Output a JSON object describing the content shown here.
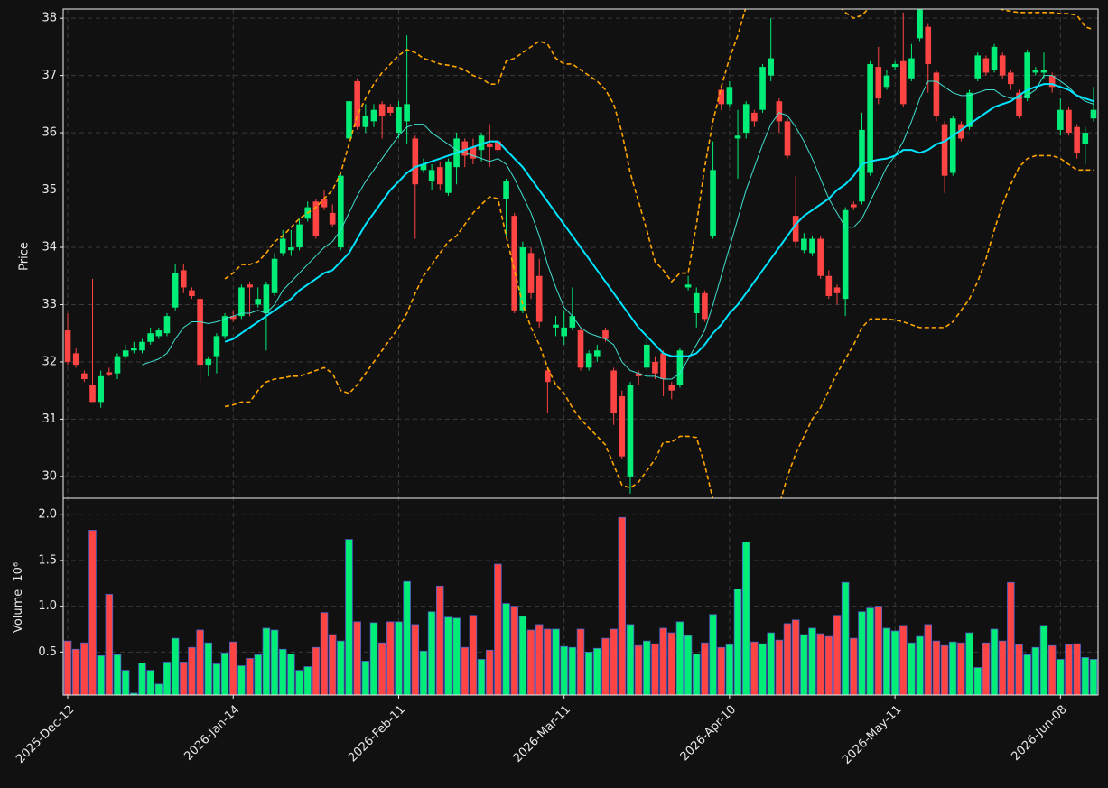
{
  "chart_data": {
    "type": "candlestick",
    "ylabel": "Price",
    "volume_ylabel": "Volume",
    "volume_offset": "10⁶",
    "categories": [
      "2025-Dec-12",
      null,
      null,
      null,
      null,
      null,
      null,
      null,
      null,
      null,
      null,
      null,
      null,
      null,
      null,
      null,
      null,
      null,
      null,
      null,
      "2026-Jan-14",
      null,
      null,
      null,
      null,
      null,
      null,
      null,
      null,
      null,
      null,
      null,
      null,
      null,
      null,
      null,
      null,
      null,
      null,
      null,
      "2026-Feb-11",
      null,
      null,
      null,
      null,
      null,
      null,
      null,
      null,
      null,
      null,
      null,
      null,
      null,
      null,
      null,
      null,
      null,
      null,
      null,
      "2026-Mar-11",
      null,
      null,
      null,
      null,
      null,
      null,
      null,
      null,
      null,
      null,
      null,
      null,
      null,
      null,
      null,
      null,
      null,
      null,
      null,
      "2026-Apr-10",
      null,
      null,
      null,
      null,
      null,
      null,
      null,
      null,
      null,
      null,
      null,
      null,
      null,
      null,
      null,
      null,
      null,
      null,
      null,
      "2026-May-11",
      null,
      null,
      null,
      null,
      null,
      null,
      null,
      null,
      null,
      null,
      null,
      null,
      null,
      null,
      null,
      null,
      null,
      null,
      null,
      "2026-Jun-08",
      null,
      null,
      null,
      null
    ],
    "open": [
      32.55,
      32.15,
      31.8,
      31.6,
      31.3,
      31.82,
      31.8,
      32.1,
      32.2,
      32.2,
      32.35,
      32.45,
      32.5,
      32.95,
      33.6,
      33.25,
      33.1,
      31.95,
      32.1,
      32.45,
      32.8,
      32.8,
      33.35,
      33.0,
      32.85,
      33.2,
      33.9,
      33.95,
      34.0,
      34.5,
      34.8,
      34.85,
      34.6,
      34.0,
      35.9,
      36.9,
      36.1,
      36.2,
      36.5,
      36.45,
      36.0,
      36.2,
      35.9,
      35.35,
      35.15,
      35.4,
      34.95,
      35.4,
      35.85,
      35.75,
      35.7,
      35.8,
      35.85,
      34.85,
      34.55,
      32.9,
      33.9,
      33.5,
      31.85,
      32.6,
      32.45,
      32.6,
      32.55,
      31.9,
      32.1,
      32.55,
      31.85,
      31.4,
      30.0,
      31.8,
      31.9,
      32.0,
      32.15,
      31.6,
      31.6,
      33.3,
      32.85,
      33.2,
      34.2,
      36.75,
      36.5,
      35.9,
      36.0,
      36.35,
      36.4,
      37.0,
      36.55,
      36.2,
      34.55,
      33.95,
      33.9,
      34.15,
      33.5,
      33.3,
      33.1,
      34.75,
      34.8,
      35.3,
      37.15,
      36.8,
      37.15,
      37.25,
      36.95,
      37.65,
      37.85,
      37.05,
      36.15,
      35.3,
      36.15,
      36.1,
      36.95,
      37.3,
      37.1,
      37.35,
      37.05,
      36.7,
      36.6,
      37.05,
      37.05,
      37.0,
      36.05,
      36.4,
      36.1,
      35.8,
      36.25
    ],
    "high": [
      32.85,
      32.25,
      31.85,
      33.45,
      31.85,
      31.9,
      32.15,
      32.3,
      32.35,
      32.4,
      32.6,
      32.6,
      32.85,
      33.7,
      33.7,
      33.3,
      33.15,
      32.1,
      32.5,
      32.85,
      32.9,
      33.35,
      33.4,
      33.3,
      33.4,
      33.9,
      34.3,
      34.3,
      34.5,
      34.8,
      34.85,
      35.0,
      34.75,
      35.3,
      36.6,
      36.95,
      36.5,
      36.5,
      36.55,
      36.5,
      36.55,
      37.7,
      35.95,
      35.55,
      35.45,
      35.5,
      35.55,
      36.0,
      35.9,
      35.9,
      36.0,
      36.15,
      35.95,
      35.2,
      34.6,
      34.1,
      34.0,
      33.8,
      31.9,
      32.8,
      32.9,
      33.3,
      32.6,
      32.2,
      32.3,
      32.6,
      31.9,
      31.5,
      31.65,
      31.85,
      32.4,
      32.1,
      32.2,
      31.65,
      32.25,
      33.5,
      33.3,
      33.25,
      35.85,
      36.8,
      36.9,
      36.4,
      36.55,
      36.4,
      37.2,
      38.0,
      36.6,
      36.25,
      35.25,
      34.25,
      34.2,
      34.2,
      33.6,
      33.35,
      34.7,
      34.8,
      36.35,
      37.25,
      37.5,
      37.1,
      37.25,
      38.1,
      37.55,
      38.16,
      37.9,
      37.1,
      36.2,
      36.3,
      36.2,
      36.75,
      37.4,
      37.35,
      37.55,
      37.4,
      37.1,
      36.75,
      37.45,
      37.15,
      37.4,
      37.05,
      36.6,
      36.45,
      36.15,
      36.1,
      36.8
    ],
    "low": [
      31.95,
      31.9,
      31.65,
      31.3,
      31.2,
      31.75,
      31.7,
      32.05,
      32.15,
      32.15,
      32.3,
      32.4,
      32.45,
      32.9,
      33.2,
      33.1,
      31.65,
      31.75,
      31.8,
      32.4,
      32.7,
      32.75,
      32.8,
      32.95,
      32.2,
      33.15,
      33.85,
      33.85,
      33.95,
      34.45,
      34.15,
      34.65,
      34.35,
      33.95,
      35.8,
      36.05,
      36.0,
      36.1,
      35.9,
      36.3,
      35.9,
      35.8,
      34.15,
      35.3,
      35.0,
      35.0,
      34.9,
      35.1,
      35.4,
      35.45,
      35.5,
      35.4,
      35.6,
      34.2,
      32.85,
      32.85,
      33.1,
      32.6,
      31.1,
      32.45,
      32.3,
      32.55,
      31.85,
      31.85,
      32.0,
      32.35,
      30.9,
      30.3,
      29.7,
      31.6,
      31.85,
      31.7,
      31.4,
      31.35,
      31.55,
      33.25,
      32.6,
      32.7,
      34.15,
      36.4,
      36.45,
      35.2,
      35.9,
      36.1,
      36.35,
      36.9,
      36.0,
      35.55,
      34.0,
      33.9,
      33.85,
      33.45,
      33.1,
      33.0,
      32.8,
      34.65,
      34.75,
      35.25,
      36.5,
      36.75,
      37.1,
      36.45,
      36.9,
      37.6,
      36.7,
      36.2,
      34.95,
      35.25,
      35.85,
      36.05,
      36.9,
      37.0,
      37.05,
      36.95,
      36.75,
      36.25,
      36.55,
      37.0,
      36.95,
      36.7,
      35.95,
      35.95,
      35.55,
      35.45,
      36.2
    ],
    "close": [
      32.0,
      31.95,
      31.7,
      31.3,
      31.75,
      31.78,
      32.1,
      32.2,
      32.25,
      32.35,
      32.5,
      32.55,
      32.8,
      33.55,
      33.3,
      33.15,
      31.95,
      32.05,
      32.45,
      32.8,
      32.75,
      33.3,
      33.3,
      33.1,
      33.35,
      33.8,
      34.15,
      34.0,
      34.4,
      34.7,
      34.2,
      34.7,
      34.4,
      35.25,
      36.55,
      36.1,
      36.3,
      36.4,
      36.3,
      36.35,
      36.45,
      36.5,
      35.1,
      35.45,
      35.35,
      35.1,
      35.5,
      35.9,
      35.6,
      35.55,
      35.95,
      35.75,
      35.7,
      35.15,
      32.9,
      34.0,
      33.2,
      32.7,
      31.65,
      32.65,
      32.6,
      32.8,
      31.9,
      32.15,
      32.2,
      32.4,
      31.1,
      30.35,
      31.6,
      31.75,
      32.3,
      31.8,
      31.7,
      31.5,
      32.2,
      33.35,
      33.2,
      32.75,
      35.35,
      36.5,
      36.8,
      35.95,
      36.5,
      36.2,
      37.15,
      37.3,
      36.2,
      35.6,
      34.1,
      34.15,
      34.15,
      33.5,
      33.15,
      33.2,
      34.65,
      34.7,
      36.05,
      37.2,
      36.6,
      37.0,
      37.2,
      36.5,
      37.3,
      38.15,
      37.2,
      36.3,
      35.25,
      36.25,
      35.9,
      36.7,
      37.35,
      37.05,
      37.5,
      37.0,
      36.85,
      36.3,
      37.4,
      37.1,
      37.1,
      36.8,
      36.4,
      36.0,
      35.65,
      36.0,
      36.4
    ],
    "volume": [
      0.62,
      0.53,
      0.6,
      1.83,
      0.46,
      1.13,
      0.47,
      0.3,
      0.05,
      0.38,
      0.3,
      0.15,
      0.39,
      0.65,
      0.39,
      0.55,
      0.74,
      0.6,
      0.37,
      0.49,
      0.61,
      0.35,
      0.43,
      0.47,
      0.76,
      0.74,
      0.53,
      0.48,
      0.3,
      0.34,
      0.55,
      0.93,
      0.69,
      0.62,
      1.73,
      0.83,
      0.4,
      0.82,
      0.6,
      0.83,
      0.83,
      1.27,
      0.8,
      0.51,
      0.94,
      1.22,
      0.88,
      0.87,
      0.55,
      0.9,
      0.42,
      0.52,
      1.46,
      1.03,
      1.0,
      0.89,
      0.74,
      0.8,
      0.75,
      0.75,
      0.56,
      0.55,
      0.75,
      0.5,
      0.54,
      0.65,
      0.75,
      1.97,
      0.8,
      0.57,
      0.62,
      0.59,
      0.76,
      0.71,
      0.83,
      0.68,
      0.48,
      0.6,
      0.91,
      0.55,
      0.58,
      1.19,
      1.7,
      0.61,
      0.59,
      0.71,
      0.63,
      0.81,
      0.85,
      0.69,
      0.76,
      0.7,
      0.67,
      0.9,
      1.26,
      0.65,
      0.94,
      0.98,
      1.0,
      0.76,
      0.73,
      0.79,
      0.6,
      0.67,
      0.8,
      0.62,
      0.57,
      0.61,
      0.6,
      0.71,
      0.33,
      0.6,
      0.75,
      0.62,
      1.26,
      0.58,
      0.47,
      0.55,
      0.79,
      0.57,
      0.42,
      0.58,
      0.59,
      0.44,
      0.42
    ],
    "up_color": "#00ee77",
    "down_color": "#ff4444",
    "volume_edge_color": "#4a63c8",
    "ylim": [
      29.62,
      38.16
    ],
    "yticks": [
      30,
      31,
      32,
      33,
      34,
      35,
      36,
      37,
      38
    ],
    "volume_ylim": [
      0.03,
      2.17
    ],
    "volume_yticks": [
      0.5,
      {
        "value": 1,
        "label": "1.0"
      },
      1.5,
      {
        "value": 2,
        "label": "2.0"
      }
    ],
    "grid": true,
    "overlays": [
      {
        "color": "#40e0d0",
        "width": 1,
        "dash": false,
        "values": [
          null,
          null,
          null,
          null,
          null,
          null,
          null,
          null,
          null,
          31.95,
          32.0,
          32.05,
          32.15,
          32.4,
          32.6,
          32.7,
          32.7,
          32.67,
          32.7,
          32.75,
          32.8,
          32.85,
          32.85,
          32.9,
          32.85,
          33.0,
          33.25,
          33.4,
          33.55,
          33.7,
          33.85,
          34.0,
          34.1,
          34.3,
          34.6,
          34.9,
          35.15,
          35.35,
          35.55,
          35.75,
          35.95,
          36.1,
          36.15,
          36.15,
          36.0,
          35.9,
          35.8,
          35.7,
          35.65,
          35.6,
          35.55,
          35.5,
          35.55,
          35.45,
          35.2,
          34.9,
          34.6,
          34.2,
          33.7,
          33.3,
          32.95,
          32.8,
          32.6,
          32.5,
          32.45,
          32.4,
          32.3,
          32.0,
          31.85,
          31.8,
          31.75,
          31.75,
          31.7,
          31.7,
          31.8,
          32.05,
          32.3,
          32.55,
          33.0,
          33.5,
          34.0,
          34.5,
          35.0,
          35.4,
          35.8,
          36.15,
          36.35,
          36.3,
          36.1,
          35.85,
          35.55,
          35.2,
          34.85,
          34.6,
          34.35,
          34.35,
          34.5,
          34.8,
          35.1,
          35.4,
          35.6,
          35.85,
          36.2,
          36.6,
          36.9,
          36.9,
          36.8,
          36.7,
          36.65,
          36.65,
          36.7,
          36.75,
          36.75,
          36.65,
          36.6,
          36.6,
          36.65,
          36.75,
          37.0,
          37.0,
          36.9,
          36.8,
          36.65,
          36.55,
          36.5
        ]
      },
      {
        "color": "#00e5ff",
        "width": 2,
        "dash": false,
        "values": [
          null,
          null,
          null,
          null,
          null,
          null,
          null,
          null,
          null,
          null,
          null,
          null,
          null,
          null,
          null,
          null,
          null,
          null,
          null,
          32.35,
          32.4,
          32.5,
          32.6,
          32.7,
          32.8,
          32.9,
          33.0,
          33.1,
          33.25,
          33.35,
          33.45,
          33.55,
          33.6,
          33.75,
          33.9,
          34.15,
          34.4,
          34.6,
          34.8,
          35.0,
          35.15,
          35.3,
          35.4,
          35.45,
          35.5,
          35.55,
          35.6,
          35.65,
          35.7,
          35.75,
          35.8,
          35.85,
          35.85,
          35.7,
          35.55,
          35.4,
          35.2,
          35.0,
          34.8,
          34.6,
          34.4,
          34.2,
          34.0,
          33.8,
          33.6,
          33.4,
          33.2,
          33.0,
          32.8,
          32.6,
          32.45,
          32.3,
          32.15,
          32.1,
          32.1,
          32.1,
          32.15,
          32.3,
          32.5,
          32.65,
          32.85,
          33.0,
          33.2,
          33.4,
          33.6,
          33.8,
          34.0,
          34.2,
          34.4,
          34.55,
          34.65,
          34.75,
          34.85,
          35.0,
          35.1,
          35.25,
          35.45,
          35.5,
          35.53,
          35.55,
          35.6,
          35.7,
          35.7,
          35.65,
          35.7,
          35.8,
          35.85,
          35.95,
          36.05,
          36.15,
          36.25,
          36.35,
          36.45,
          36.5,
          36.55,
          36.65,
          36.75,
          36.8,
          36.85,
          36.85,
          36.8,
          36.75,
          36.65,
          36.6,
          36.55
        ]
      },
      {
        "color": "#ffa500",
        "width": 1.6,
        "dash": true,
        "values": [
          null,
          null,
          null,
          null,
          null,
          null,
          null,
          null,
          null,
          null,
          null,
          null,
          null,
          null,
          null,
          null,
          null,
          null,
          null,
          33.45,
          33.55,
          33.7,
          33.7,
          33.75,
          33.9,
          34.1,
          34.2,
          34.35,
          34.5,
          34.6,
          34.7,
          34.85,
          35.0,
          35.3,
          35.8,
          36.3,
          36.6,
          36.85,
          37.05,
          37.2,
          37.35,
          37.45,
          37.4,
          37.3,
          37.25,
          37.2,
          37.18,
          37.15,
          37.1,
          37.0,
          36.95,
          36.85,
          36.85,
          37.25,
          37.3,
          37.4,
          37.5,
          37.6,
          37.55,
          37.3,
          37.2,
          37.2,
          37.1,
          37.0,
          36.9,
          36.75,
          36.5,
          36.0,
          35.3,
          34.8,
          34.3,
          33.75,
          33.6,
          33.4,
          33.55,
          33.55,
          34.4,
          35.4,
          36.2,
          36.8,
          37.3,
          37.7,
          38.2,
          38.6,
          39.0,
          39.3,
          39.5,
          39.5,
          39.4,
          39.2,
          39.0,
          38.8,
          38.5,
          38.25,
          38.1,
          38.0,
          38.05,
          38.2,
          38.35,
          38.5,
          38.6,
          38.6,
          38.55,
          38.5,
          38.45,
          38.4,
          38.35,
          38.3,
          38.3,
          38.3,
          38.28,
          38.25,
          38.2,
          38.15,
          38.12,
          38.1,
          38.1,
          38.1,
          38.1,
          38.1,
          38.08,
          38.08,
          38.05,
          37.85,
          37.8
        ]
      },
      {
        "color": "#ffa500",
        "width": 1.6,
        "dash": true,
        "values": [
          null,
          null,
          null,
          null,
          null,
          null,
          null,
          null,
          null,
          null,
          null,
          null,
          null,
          null,
          null,
          null,
          null,
          null,
          null,
          31.22,
          31.25,
          31.3,
          31.3,
          31.5,
          31.65,
          31.7,
          31.72,
          31.75,
          31.75,
          31.8,
          31.85,
          31.9,
          31.8,
          31.5,
          31.45,
          31.6,
          31.8,
          32.0,
          32.2,
          32.4,
          32.6,
          32.85,
          33.2,
          33.5,
          33.7,
          33.9,
          34.1,
          34.2,
          34.4,
          34.6,
          34.75,
          34.88,
          34.85,
          34.2,
          33.6,
          33.0,
          32.6,
          32.3,
          31.9,
          31.6,
          31.45,
          31.2,
          31.0,
          30.85,
          30.7,
          30.55,
          30.2,
          29.85,
          29.8,
          29.9,
          30.1,
          30.3,
          30.6,
          30.6,
          30.7,
          30.7,
          30.68,
          30.2,
          29.6,
          29.2,
          28.8,
          28.5,
          28.3,
          28.3,
          28.4,
          28.7,
          29.5,
          30.0,
          30.4,
          30.7,
          31.0,
          31.2,
          31.5,
          31.8,
          32.05,
          32.3,
          32.6,
          32.75,
          32.75,
          32.75,
          32.73,
          32.7,
          32.65,
          32.6,
          32.6,
          32.6,
          32.6,
          32.7,
          32.9,
          33.1,
          33.4,
          33.8,
          34.3,
          34.75,
          35.1,
          35.4,
          35.55,
          35.6,
          35.6,
          35.6,
          35.55,
          35.45,
          35.35,
          35.35,
          35.35
        ]
      }
    ]
  }
}
